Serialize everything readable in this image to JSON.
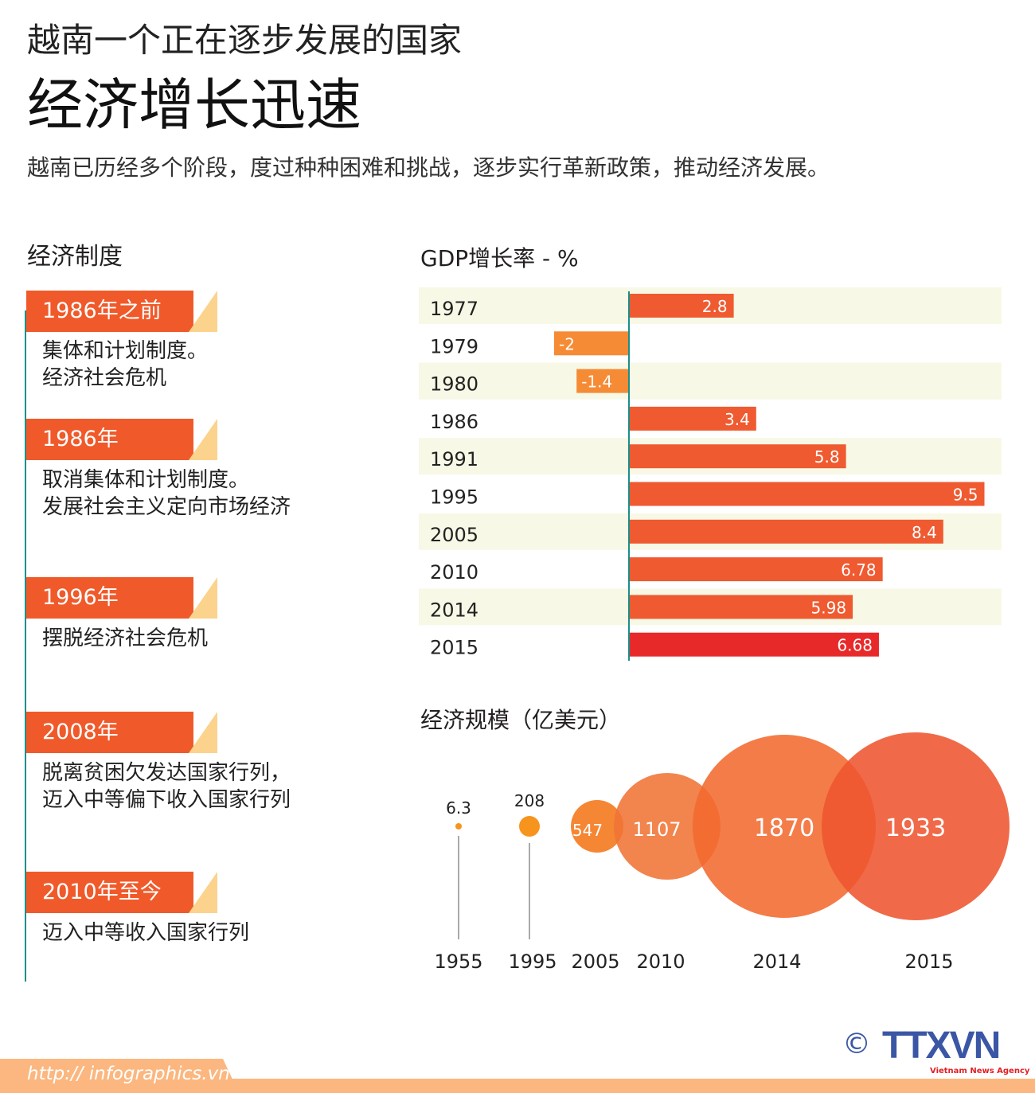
{
  "header": {
    "supertitle": "越南一个正在逐步发展的国家",
    "title": "经济增长迅速",
    "subtitle": "越南已历经多个阶段，度过种种困难和挑战，逐步实行革新政策，推动经济发展。"
  },
  "system": {
    "heading": "经济制度",
    "items": [
      {
        "tag": "1986年之前",
        "desc": "集体和计划制度。\n经济社会危机"
      },
      {
        "tag": "1986年",
        "desc": "取消集体和计划制度。\n发展社会主义定向市场经济"
      },
      {
        "tag": "1996年",
        "desc": "摆脱经济社会危机"
      },
      {
        "tag": "2008年",
        "desc": "脱离贫困欠发达国家行列，\n迈入中等偏下收入国家行列"
      },
      {
        "tag": "2010年至今",
        "desc": "迈入中等收入国家行列"
      }
    ]
  },
  "chart_data": [
    {
      "type": "bar",
      "orientation": "horizontal",
      "title": "GDP增长率 - %",
      "categories": [
        "1977",
        "1979",
        "1980",
        "1986",
        "1991",
        "1995",
        "2005",
        "2010",
        "2014",
        "2015"
      ],
      "values": [
        2.8,
        -2,
        -1.4,
        3.4,
        5.8,
        9.5,
        8.4,
        6.78,
        5.98,
        6.68
      ],
      "labels": [
        "2.8",
        "-2",
        "-1.4",
        "3.4",
        "5.8",
        "9.5",
        "8.4",
        "6.78",
        "5.98",
        "6.68"
      ],
      "colors": {
        "positive": "#ef5a30",
        "negative": "#f58b35",
        "highlight": "#e8292a",
        "band": "#f8f8e6"
      }
    },
    {
      "type": "bubble",
      "title": "经济规模（亿美元）",
      "categories": [
        "1955",
        "1995",
        "2005",
        "2010",
        "2014",
        "2015"
      ],
      "values": [
        6.3,
        208,
        547,
        1107,
        1870,
        1933
      ],
      "labels": [
        "6.3",
        "208",
        "547",
        "1107",
        "1870",
        "1933"
      ]
    }
  ],
  "footer": {
    "url": "http:// infographics.vn",
    "copyright": "©",
    "logo": "TTXVN",
    "logo_sub": "Vietnam News Agency"
  }
}
